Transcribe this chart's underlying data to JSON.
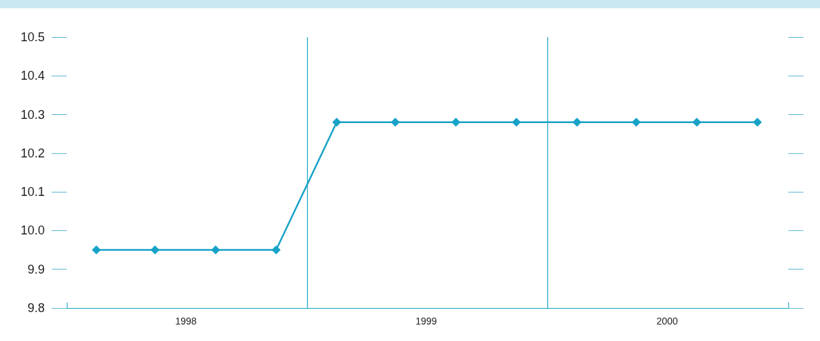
{
  "chart_data": {
    "type": "line",
    "x": [
      "1998-02-15",
      "1998-05-15",
      "1998-08-15",
      "1998-11-15",
      "1999-02-15",
      "1999-05-15",
      "1999-08-15",
      "1999-11-15",
      "2000-02-15",
      "2000-05-15",
      "2000-08-15",
      "2000-11-15"
    ],
    "series": [
      {
        "color": "#17a2c8",
        "values": [
          9.95,
          9.95,
          9.95,
          9.95,
          10.28,
          10.28,
          10.28,
          10.28,
          10.28,
          10.28,
          10.28,
          10.28
        ]
      }
    ],
    "xlim": [
      "1998-01-01",
      "2001-01-01"
    ],
    "xticks": [
      {
        "value": "1998-07-01",
        "label": "1998"
      },
      {
        "value": "1999-07-01",
        "label": "1999"
      },
      {
        "value": "2000-07-01",
        "label": "2000"
      }
    ],
    "ylim": [
      9.8,
      10.5
    ],
    "yticks": [
      9.8,
      9.9,
      {
        "value": 10,
        "label": "10.0"
      },
      10.1,
      10.2,
      10.3,
      10.4,
      10.5
    ],
    "ref_lines": [
      {
        "axis": "x",
        "value": "1999-01-01",
        "color": "#17a2c8"
      },
      {
        "axis": "x",
        "value": "2000-01-01",
        "color": "#17a2c8"
      }
    ],
    "marker": "diamond",
    "line_style": "solid"
  }
}
